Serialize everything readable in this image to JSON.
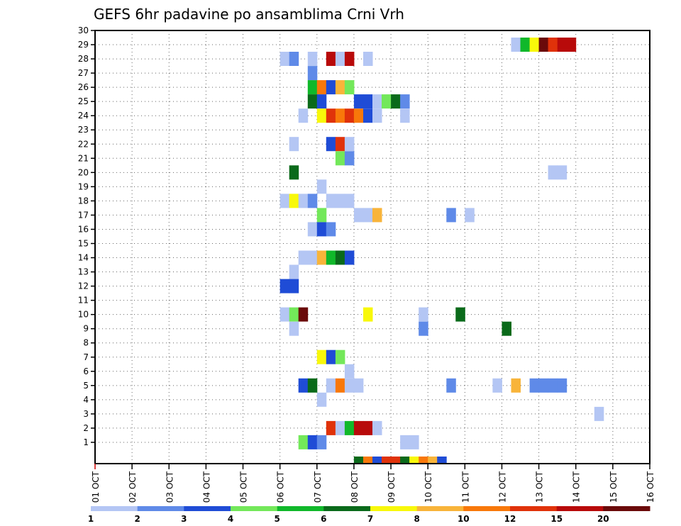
{
  "chart_data": {
    "type": "heatmap",
    "title": "GEFS 6hr padavine po ansamblima Crni Vrh",
    "x_ticks": [
      "01 OCT",
      "02 OCT",
      "03 OCT",
      "04 OCT",
      "05 OCT",
      "06 OCT",
      "07 OCT",
      "08 OCT",
      "09 OCT",
      "10 OCT",
      "11 OCT",
      "12 OCT",
      "13 OCT",
      "14 OCT",
      "15 OCT",
      "16 OCT"
    ],
    "y_ticks": [
      "1",
      "2",
      "3",
      "4",
      "5",
      "6",
      "7",
      "8",
      "9",
      "10",
      "11",
      "12",
      "13",
      "14",
      "15",
      "16",
      "17",
      "18",
      "19",
      "20",
      "21",
      "22",
      "23",
      "24",
      "25",
      "26",
      "27",
      "28",
      "29",
      "30"
    ],
    "x_range": [
      "01 OCT",
      "16 OCT"
    ],
    "y_range": [
      0,
      30
    ],
    "grid": true,
    "colorbar": {
      "labels": [
        "1",
        "2",
        "3",
        "4",
        "5",
        "6",
        "7",
        "8",
        "10",
        "12",
        "15",
        "20"
      ],
      "colors": [
        "#b4c6f4",
        "#5f8ae8",
        "#1f4cd6",
        "#73e85a",
        "#10b82a",
        "#0a6a1a",
        "#f8f80a",
        "#f8b43a",
        "#f8780a",
        "#e0320a",
        "#b80a0a",
        "#6a0a0a"
      ]
    },
    "cells": [
      {
        "member": 30,
        "time": []
      },
      {
        "member": 29,
        "time": [
          [
            12.25,
            0
          ],
          [
            12.5,
            4
          ],
          [
            12.75,
            6
          ],
          [
            13.0,
            11
          ],
          [
            13.25,
            9
          ],
          [
            13.5,
            10
          ],
          [
            13.75,
            10
          ]
        ]
      },
      {
        "member": 28,
        "time": [
          [
            6.0,
            0
          ],
          [
            6.25,
            1
          ],
          [
            6.75,
            0
          ],
          [
            7.25,
            10
          ],
          [
            7.5,
            0
          ],
          [
            7.75,
            10
          ],
          [
            8.25,
            0
          ]
        ]
      },
      {
        "member": 27,
        "time": [
          [
            6.75,
            1
          ]
        ]
      },
      {
        "member": 26,
        "time": [
          [
            6.75,
            4
          ],
          [
            7.0,
            8
          ],
          [
            7.25,
            2
          ],
          [
            7.5,
            7
          ],
          [
            7.75,
            3
          ]
        ]
      },
      {
        "member": 25,
        "time": [
          [
            6.75,
            5
          ],
          [
            7.0,
            2
          ],
          [
            8.0,
            2
          ],
          [
            8.25,
            2
          ],
          [
            8.5,
            0
          ],
          [
            8.75,
            3
          ],
          [
            9.0,
            5
          ],
          [
            9.25,
            1
          ]
        ]
      },
      {
        "member": 24,
        "time": [
          [
            6.5,
            0
          ],
          [
            7.0,
            6
          ],
          [
            7.25,
            9
          ],
          [
            7.5,
            8
          ],
          [
            7.75,
            9
          ],
          [
            8.0,
            8
          ],
          [
            8.25,
            2
          ],
          [
            8.5,
            0
          ],
          [
            9.25,
            0
          ]
        ]
      },
      {
        "member": 23,
        "time": []
      },
      {
        "member": 22,
        "time": [
          [
            6.25,
            0
          ],
          [
            7.25,
            2
          ],
          [
            7.5,
            9
          ],
          [
            7.75,
            0
          ]
        ]
      },
      {
        "member": 21,
        "time": [
          [
            7.5,
            3
          ],
          [
            7.75,
            1
          ]
        ]
      },
      {
        "member": 20,
        "time": [
          [
            6.25,
            5
          ],
          [
            13.25,
            0
          ],
          [
            13.5,
            0
          ]
        ]
      },
      {
        "member": 19,
        "time": [
          [
            7.0,
            0
          ]
        ]
      },
      {
        "member": 18,
        "time": [
          [
            6.0,
            0
          ],
          [
            6.25,
            6
          ],
          [
            6.5,
            0
          ],
          [
            6.75,
            1
          ],
          [
            7.25,
            0
          ],
          [
            7.5,
            0
          ],
          [
            7.75,
            0
          ]
        ]
      },
      {
        "member": 17,
        "time": [
          [
            7.0,
            3
          ],
          [
            8.0,
            0
          ],
          [
            8.25,
            0
          ],
          [
            8.5,
            7
          ],
          [
            10.5,
            1
          ],
          [
            11.0,
            0
          ]
        ]
      },
      {
        "member": 16,
        "time": [
          [
            6.75,
            0
          ],
          [
            7.0,
            2
          ],
          [
            7.25,
            1
          ]
        ]
      },
      {
        "member": 15,
        "time": []
      },
      {
        "member": 14,
        "time": [
          [
            6.5,
            0
          ],
          [
            6.75,
            0
          ],
          [
            7.0,
            7
          ],
          [
            7.25,
            4
          ],
          [
            7.5,
            5
          ],
          [
            7.75,
            2
          ]
        ]
      },
      {
        "member": 13,
        "time": [
          [
            6.25,
            0
          ]
        ]
      },
      {
        "member": 12,
        "time": [
          [
            6.0,
            2
          ],
          [
            6.25,
            2
          ]
        ]
      },
      {
        "member": 11,
        "time": []
      },
      {
        "member": 10,
        "time": [
          [
            6.0,
            0
          ],
          [
            6.25,
            3
          ],
          [
            6.5,
            11
          ],
          [
            8.25,
            6
          ],
          [
            9.75,
            0
          ],
          [
            10.75,
            5
          ]
        ]
      },
      {
        "member": 9,
        "time": [
          [
            6.25,
            0
          ],
          [
            9.75,
            1
          ],
          [
            12.0,
            5
          ]
        ]
      },
      {
        "member": 8,
        "time": []
      },
      {
        "member": 7,
        "time": [
          [
            7.0,
            6
          ],
          [
            7.25,
            2
          ],
          [
            7.5,
            3
          ]
        ]
      },
      {
        "member": 6,
        "time": [
          [
            7.75,
            0
          ]
        ]
      },
      {
        "member": 5,
        "time": [
          [
            6.5,
            2
          ],
          [
            6.75,
            5
          ],
          [
            7.25,
            0
          ],
          [
            7.5,
            8
          ],
          [
            7.75,
            0
          ],
          [
            8.0,
            0
          ],
          [
            10.5,
            1
          ],
          [
            11.75,
            0
          ],
          [
            12.25,
            7
          ],
          [
            12.75,
            1
          ],
          [
            13.0,
            1
          ],
          [
            13.25,
            1
          ],
          [
            13.5,
            1
          ]
        ]
      },
      {
        "member": 4,
        "time": [
          [
            7.0,
            0
          ]
        ]
      },
      {
        "member": 3,
        "time": [
          [
            14.5,
            0
          ]
        ]
      },
      {
        "member": 2,
        "time": [
          [
            7.25,
            9
          ],
          [
            7.5,
            0
          ],
          [
            7.75,
            4
          ],
          [
            8.0,
            10
          ],
          [
            8.25,
            10
          ],
          [
            8.5,
            0
          ]
        ]
      },
      {
        "member": 1,
        "time": [
          [
            6.5,
            3
          ],
          [
            6.75,
            2
          ],
          [
            7.0,
            1
          ],
          [
            9.25,
            0
          ],
          [
            9.5,
            0
          ]
        ]
      },
      {
        "member": 0,
        "time": [
          [
            8.0,
            5
          ],
          [
            8.25,
            8
          ],
          [
            8.5,
            2
          ],
          [
            8.75,
            9
          ],
          [
            9.0,
            9
          ],
          [
            9.25,
            5
          ],
          [
            9.5,
            6
          ],
          [
            9.75,
            8
          ],
          [
            10.0,
            7
          ],
          [
            10.25,
            2
          ]
        ]
      }
    ]
  }
}
